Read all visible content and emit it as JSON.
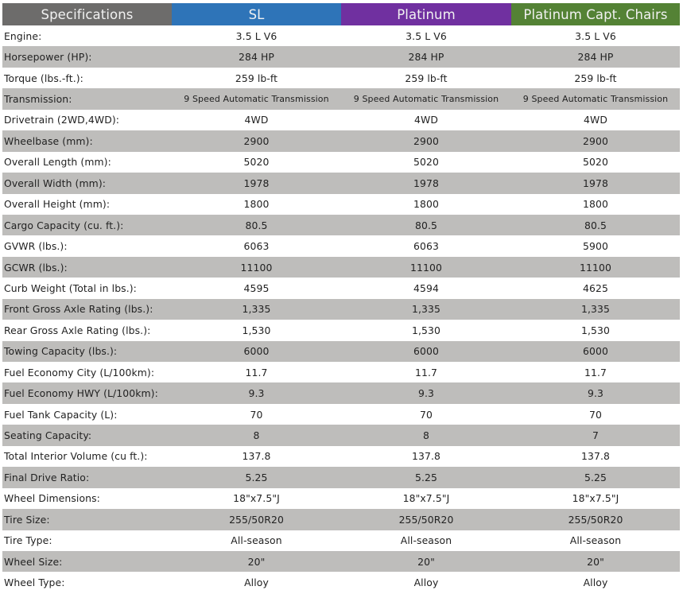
{
  "header": {
    "spec_label": "Specifications",
    "trims": [
      "SL",
      "Platinum",
      "Platinum Capt. Chairs"
    ],
    "colors": {
      "spec": "#6d6c6b",
      "sl": "#2e74b8",
      "platinum": "#7030a0",
      "capt_chairs": "#548235",
      "alt_row": "#bebdbb"
    }
  },
  "rows": [
    {
      "label": "Engine:",
      "values": [
        "3.5 L V6",
        "3.5 L V6",
        "3.5 L V6"
      ]
    },
    {
      "label": "Horsepower (HP):",
      "values": [
        "284 HP",
        "284 HP",
        "284 HP"
      ]
    },
    {
      "label": "Torque (lbs.-ft.):",
      "values": [
        "259 lb-ft",
        "259 lb-ft",
        "259 lb-ft"
      ]
    },
    {
      "label": "Transmission:",
      "values": [
        "9 Speed Automatic Transmission",
        "9 Speed Automatic Transmission",
        "9 Speed Automatic Transmission"
      ]
    },
    {
      "label": "Drivetrain (2WD,4WD):",
      "values": [
        "4WD",
        "4WD",
        "4WD"
      ]
    },
    {
      "label": "Wheelbase (mm):",
      "values": [
        "2900",
        "2900",
        "2900"
      ]
    },
    {
      "label": "Overall Length (mm):",
      "values": [
        "5020",
        "5020",
        "5020"
      ]
    },
    {
      "label": "Overall Width (mm):",
      "values": [
        "1978",
        "1978",
        "1978"
      ]
    },
    {
      "label": "Overall Height (mm):",
      "values": [
        "1800",
        "1800",
        "1800"
      ]
    },
    {
      "label": "Cargo Capacity (cu. ft.):",
      "values": [
        "80.5",
        "80.5",
        "80.5"
      ]
    },
    {
      "label": "GVWR (lbs.):",
      "values": [
        "6063",
        "6063",
        "5900"
      ]
    },
    {
      "label": "GCWR  (lbs.):",
      "values": [
        "11100",
        "11100",
        "11100"
      ]
    },
    {
      "label": "Curb Weight (Total in lbs.):",
      "values": [
        "4595",
        "4594",
        "4625"
      ]
    },
    {
      "label": "Front Gross Axle Rating (lbs.):",
      "values": [
        "1,335",
        "1,335",
        "1,335"
      ]
    },
    {
      "label": "Rear Gross Axle Rating (lbs.):",
      "values": [
        "1,530",
        "1,530",
        "1,530"
      ]
    },
    {
      "label": "Towing Capacity (lbs.):",
      "values": [
        "6000",
        "6000",
        "6000"
      ]
    },
    {
      "label": "Fuel Economy City (L/100km):",
      "values": [
        "11.7",
        "11.7",
        "11.7"
      ]
    },
    {
      "label": "Fuel Economy HWY (L/100km):",
      "values": [
        "9.3",
        "9.3",
        "9.3"
      ]
    },
    {
      "label": "Fuel Tank Capacity (L):",
      "values": [
        "70",
        "70",
        "70"
      ]
    },
    {
      "label": "Seating Capacity:",
      "values": [
        "8",
        "8",
        "7"
      ]
    },
    {
      "label": "Total Interior Volume (cu ft.):",
      "values": [
        "137.8",
        "137.8",
        "137.8"
      ]
    },
    {
      "label": "Final Drive Ratio:",
      "values": [
        "5.25",
        "5.25",
        "5.25"
      ]
    },
    {
      "label": "Wheel Dimensions:",
      "values": [
        "18\"x7.5\"J",
        "18\"x7.5\"J",
        "18\"x7.5\"J"
      ]
    },
    {
      "label": "Tire Size:",
      "values": [
        "255/50R20",
        "255/50R20",
        "255/50R20"
      ]
    },
    {
      "label": "Tire Type:",
      "values": [
        "All-season",
        "All-season",
        "All-season"
      ]
    },
    {
      "label": "Wheel Size:",
      "values": [
        "20\"",
        "20\"",
        "20\""
      ]
    },
    {
      "label": "Wheel Type:",
      "values": [
        "Alloy",
        "Alloy",
        "Alloy"
      ]
    }
  ]
}
